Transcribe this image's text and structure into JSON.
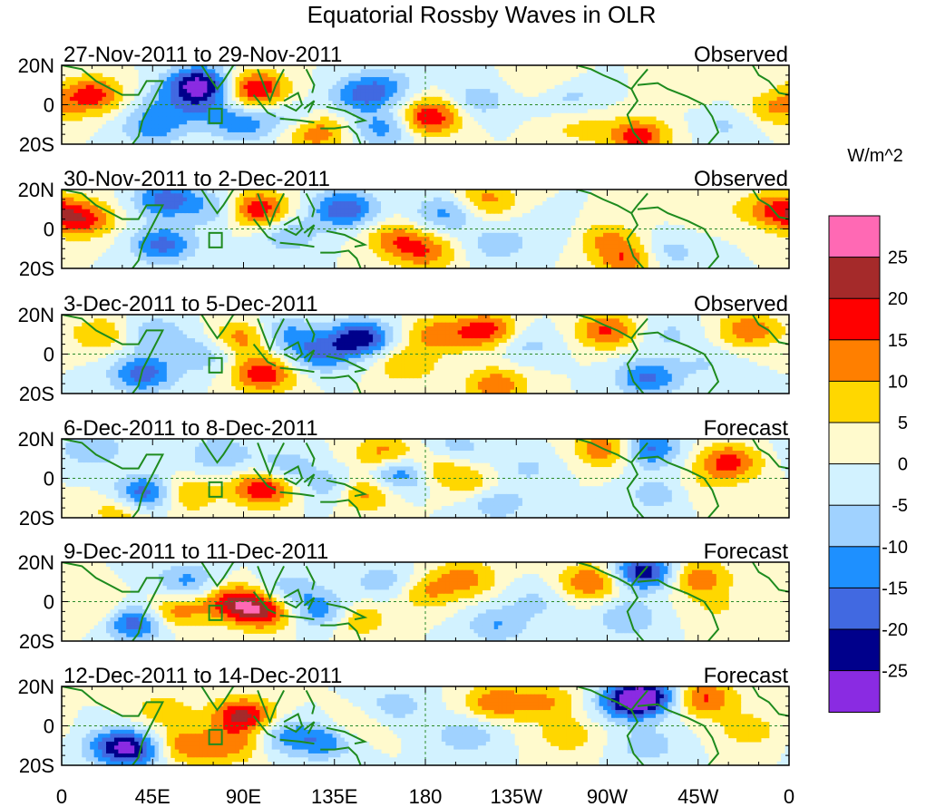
{
  "title": "Equatorial Rossby Waves in OLR",
  "colorbar": {
    "unit_label": "W/m^2",
    "tick_labels": [
      "25",
      "20",
      "15",
      "10",
      "5",
      "0",
      "-5",
      "-10",
      "-15",
      "-20",
      "-25"
    ],
    "colors": [
      "#ff69b4",
      "#a52a2a",
      "#ff0000",
      "#ff7f00",
      "#ffd700",
      "#fffacd",
      "#d2f2ff",
      "#a0d2ff",
      "#1e90ff",
      "#4169e1",
      "#00008b",
      "#8a2be2"
    ]
  },
  "chart_data": {
    "type": "heatmap",
    "variable": "OLR anomaly (Equatorial Rossby wave filtered)",
    "units": "W/m^2",
    "x_axis": {
      "ticks": [
        "0",
        "45E",
        "90E",
        "135E",
        "180",
        "135W",
        "90W",
        "45W",
        "0"
      ],
      "range": [
        0,
        360
      ]
    },
    "y_axis": {
      "ticks": [
        "20N",
        "0",
        "20S"
      ],
      "range": [
        -20,
        20
      ]
    },
    "contour_levels": [
      -25,
      -20,
      -15,
      -10,
      -5,
      0,
      5,
      10,
      15,
      20,
      25
    ],
    "panels": [
      {
        "period": "27-Nov-2011 to 29-Nov-2011",
        "status": "Observed",
        "features": [
          {
            "lon": 15,
            "lat": 5,
            "v": 18
          },
          {
            "lon": -8,
            "lat": -2,
            "v": 10
          },
          {
            "lon": 45,
            "lat": -12,
            "v": -12
          },
          {
            "lon": 68,
            "lat": 10,
            "v": -28
          },
          {
            "lon": 70,
            "lat": -3,
            "v": -9
          },
          {
            "lon": 50,
            "lat": 0,
            "v": -7
          },
          {
            "lon": 96,
            "lat": 8,
            "v": 21
          },
          {
            "lon": 90,
            "lat": -10,
            "v": -12
          },
          {
            "lon": 118,
            "lat": -6,
            "v": -11
          },
          {
            "lon": 125,
            "lat": -14,
            "v": 15
          },
          {
            "lon": 128,
            "lat": -3,
            "v": 9
          },
          {
            "lon": 135,
            "lat": 0,
            "v": -6
          },
          {
            "lon": 150,
            "lat": 5,
            "v": -13
          },
          {
            "lon": 160,
            "lat": -12,
            "v": -13
          },
          {
            "lon": 160,
            "lat": 10,
            "v": -8
          },
          {
            "lon": 180,
            "lat": -8,
            "v": 12
          },
          {
            "lon": 185,
            "lat": -4,
            "v": 10
          },
          {
            "lon": 205,
            "lat": 2,
            "v": -9
          },
          {
            "lon": 250,
            "lat": 5,
            "v": -8
          },
          {
            "lon": 255,
            "lat": -12,
            "v": 6
          },
          {
            "lon": 285,
            "lat": -16,
            "v": 18
          },
          {
            "lon": 240,
            "lat": 12,
            "v": 7
          },
          {
            "lon": 310,
            "lat": 10,
            "v": 4
          },
          {
            "lon": 330,
            "lat": -10,
            "v": -6
          }
        ]
      },
      {
        "period": "30-Nov-2011 to 2-Dec-2011",
        "status": "Observed",
        "features": [
          {
            "lon": 10,
            "lat": 5,
            "v": 18
          },
          {
            "lon": -8,
            "lat": 10,
            "v": 14
          },
          {
            "lon": 52,
            "lat": 15,
            "v": -18
          },
          {
            "lon": 50,
            "lat": -8,
            "v": -17
          },
          {
            "lon": 78,
            "lat": 10,
            "v": -10
          },
          {
            "lon": 96,
            "lat": 10,
            "v": 21
          },
          {
            "lon": 112,
            "lat": -3,
            "v": -9
          },
          {
            "lon": 140,
            "lat": 10,
            "v": -20
          },
          {
            "lon": 165,
            "lat": -5,
            "v": 12
          },
          {
            "lon": 180,
            "lat": -12,
            "v": 13
          },
          {
            "lon": 190,
            "lat": 8,
            "v": -12
          },
          {
            "lon": 210,
            "lat": 15,
            "v": 12
          },
          {
            "lon": 215,
            "lat": -8,
            "v": -8
          },
          {
            "lon": 240,
            "lat": 0,
            "v": -4
          },
          {
            "lon": 270,
            "lat": -5,
            "v": 10
          },
          {
            "lon": 280,
            "lat": -16,
            "v": 14
          },
          {
            "lon": 300,
            "lat": -12,
            "v": -8
          },
          {
            "lon": 320,
            "lat": 10,
            "v": 4
          }
        ]
      },
      {
        "period": "3-Dec-2011 to 5-Dec-2011",
        "status": "Observed",
        "features": [
          {
            "lon": 20,
            "lat": 10,
            "v": 10
          },
          {
            "lon": 40,
            "lat": -10,
            "v": -18
          },
          {
            "lon": 45,
            "lat": 10,
            "v": -10
          },
          {
            "lon": 70,
            "lat": 0,
            "v": -9
          },
          {
            "lon": 90,
            "lat": 8,
            "v": 14
          },
          {
            "lon": 100,
            "lat": -10,
            "v": 19
          },
          {
            "lon": 110,
            "lat": 10,
            "v": -12
          },
          {
            "lon": 128,
            "lat": 0,
            "v": -15
          },
          {
            "lon": 148,
            "lat": 8,
            "v": -23
          },
          {
            "lon": 170,
            "lat": -5,
            "v": 10
          },
          {
            "lon": 185,
            "lat": 10,
            "v": 12
          },
          {
            "lon": 210,
            "lat": 12,
            "v": 18
          },
          {
            "lon": 215,
            "lat": -16,
            "v": 14
          },
          {
            "lon": 230,
            "lat": 5,
            "v": -7
          },
          {
            "lon": 270,
            "lat": 12,
            "v": 16
          },
          {
            "lon": 290,
            "lat": -12,
            "v": -16
          },
          {
            "lon": 300,
            "lat": 10,
            "v": -6
          },
          {
            "lon": 340,
            "lat": 12,
            "v": 14
          },
          {
            "lon": 320,
            "lat": -5,
            "v": -5
          }
        ]
      },
      {
        "period": "6-Dec-2011 to 8-Dec-2011",
        "status": "Forecast",
        "features": [
          {
            "lon": 15,
            "lat": 15,
            "v": -10
          },
          {
            "lon": 30,
            "lat": -16,
            "v": 10
          },
          {
            "lon": 42,
            "lat": -8,
            "v": -22
          },
          {
            "lon": 60,
            "lat": -8,
            "v": 13
          },
          {
            "lon": 78,
            "lat": 12,
            "v": -10
          },
          {
            "lon": 100,
            "lat": -5,
            "v": 21
          },
          {
            "lon": 110,
            "lat": 5,
            "v": -10
          },
          {
            "lon": 135,
            "lat": -5,
            "v": -12
          },
          {
            "lon": 148,
            "lat": -7,
            "v": 16
          },
          {
            "lon": 160,
            "lat": 12,
            "v": 14
          },
          {
            "lon": 168,
            "lat": 3,
            "v": -19
          },
          {
            "lon": 185,
            "lat": 5,
            "v": 12
          },
          {
            "lon": 195,
            "lat": 15,
            "v": -8
          },
          {
            "lon": 205,
            "lat": -3,
            "v": 8
          },
          {
            "lon": 215,
            "lat": -12,
            "v": -10
          },
          {
            "lon": 230,
            "lat": 5,
            "v": -6
          },
          {
            "lon": 270,
            "lat": 15,
            "v": 16
          },
          {
            "lon": 290,
            "lat": 15,
            "v": -18
          },
          {
            "lon": 295,
            "lat": -8,
            "v": -8
          },
          {
            "lon": 330,
            "lat": 8,
            "v": 18
          },
          {
            "lon": 315,
            "lat": -5,
            "v": 4
          }
        ]
      },
      {
        "period": "9-Dec-2011 to 11-Dec-2011",
        "status": "Forecast",
        "features": [
          {
            "lon": 20,
            "lat": -5,
            "v": 8
          },
          {
            "lon": 36,
            "lat": -10,
            "v": -21
          },
          {
            "lon": 55,
            "lat": -5,
            "v": 14
          },
          {
            "lon": 62,
            "lat": 10,
            "v": -12
          },
          {
            "lon": 85,
            "lat": 0,
            "v": 18
          },
          {
            "lon": 100,
            "lat": -5,
            "v": 20
          },
          {
            "lon": 112,
            "lat": 5,
            "v": -10
          },
          {
            "lon": 130,
            "lat": -5,
            "v": -15
          },
          {
            "lon": 145,
            "lat": -8,
            "v": 12
          },
          {
            "lon": 160,
            "lat": 10,
            "v": -9
          },
          {
            "lon": 180,
            "lat": 5,
            "v": 10
          },
          {
            "lon": 200,
            "lat": 12,
            "v": 12
          },
          {
            "lon": 215,
            "lat": -12,
            "v": -10
          },
          {
            "lon": 235,
            "lat": 0,
            "v": -6
          },
          {
            "lon": 262,
            "lat": 10,
            "v": 16
          },
          {
            "lon": 288,
            "lat": 15,
            "v": -24
          },
          {
            "lon": 280,
            "lat": -8,
            "v": -10
          },
          {
            "lon": 315,
            "lat": 12,
            "v": 14
          },
          {
            "lon": 325,
            "lat": -3,
            "v": 5
          }
        ]
      },
      {
        "period": "12-Dec-2011 to 14-Dec-2011",
        "status": "Forecast",
        "features": [
          {
            "lon": 25,
            "lat": -10,
            "v": -10
          },
          {
            "lon": 35,
            "lat": -12,
            "v": -21
          },
          {
            "lon": 50,
            "lat": 8,
            "v": 8
          },
          {
            "lon": 60,
            "lat": -10,
            "v": 13
          },
          {
            "lon": 90,
            "lat": 5,
            "v": 22
          },
          {
            "lon": 84,
            "lat": -10,
            "v": 12
          },
          {
            "lon": 110,
            "lat": -5,
            "v": -11
          },
          {
            "lon": 130,
            "lat": -8,
            "v": -13
          },
          {
            "lon": 145,
            "lat": 0,
            "v": 6
          },
          {
            "lon": 165,
            "lat": 10,
            "v": -8
          },
          {
            "lon": 200,
            "lat": -5,
            "v": -9
          },
          {
            "lon": 215,
            "lat": 12,
            "v": 14
          },
          {
            "lon": 240,
            "lat": 12,
            "v": 10
          },
          {
            "lon": 250,
            "lat": -5,
            "v": 8
          },
          {
            "lon": 280,
            "lat": 12,
            "v": -18
          },
          {
            "lon": 290,
            "lat": 15,
            "v": -22
          },
          {
            "lon": 290,
            "lat": -10,
            "v": -8
          },
          {
            "lon": 318,
            "lat": 14,
            "v": 16
          },
          {
            "lon": 340,
            "lat": -2,
            "v": 8
          }
        ]
      }
    ]
  }
}
